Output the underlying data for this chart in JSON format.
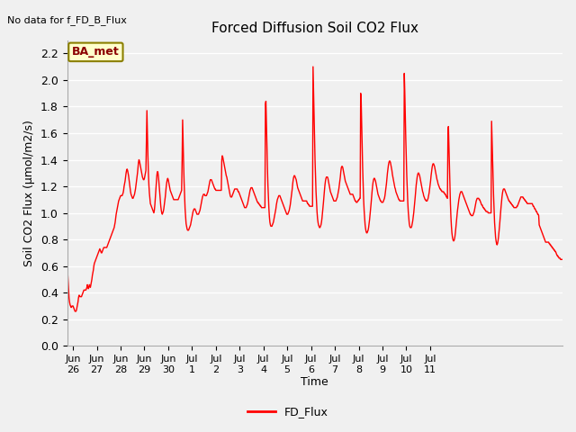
{
  "title": "Forced Diffusion Soil CO2 Flux",
  "ylabel": "Soil CO2 Flux (μmol/m2/s)",
  "xlabel": "Time",
  "no_data_text": "No data for f_FD_B_Flux",
  "legend_label": "FD_Flux",
  "line_color": "red",
  "line_width": 1.0,
  "bg_color": "#f0f0f0",
  "plot_bg_color": "#f0f0f0",
  "ylim": [
    0.0,
    2.3
  ],
  "yticks": [
    0.0,
    0.2,
    0.4,
    0.6,
    0.8,
    1.0,
    1.2,
    1.4,
    1.6,
    1.8,
    2.0,
    2.2
  ],
  "ba_met_box": {
    "text": "BA_met",
    "facecolor": "#ffffcc",
    "edgecolor": "#8B8000",
    "textcolor": "#8B0000"
  },
  "x_tick_labels": [
    "Jun\n26",
    "Jun\n27",
    "Jun\n28",
    "Jun\n29",
    "Jun\n30",
    "Jul\n1",
    "Jul\n2",
    "Jul\n3",
    "Jul\n4",
    "Jul\n5",
    "Jul\n6",
    "Jul\n7",
    "Jul\n8",
    "Jul\n9",
    "Jul\n10",
    "Jul\n11"
  ],
  "flux_values": [
    0.63,
    0.56,
    0.48,
    0.41,
    0.36,
    0.33,
    0.31,
    0.3,
    0.29,
    0.29,
    0.3,
    0.3,
    0.3,
    0.29,
    0.28,
    0.27,
    0.26,
    0.26,
    0.26,
    0.27,
    0.29,
    0.31,
    0.33,
    0.36,
    0.38,
    0.38,
    0.37,
    0.37,
    0.37,
    0.37,
    0.38,
    0.39,
    0.4,
    0.41,
    0.42,
    0.42,
    0.42,
    0.42,
    0.42,
    0.43,
    0.44,
    0.46,
    0.44,
    0.43,
    0.44,
    0.46,
    0.45,
    0.44,
    0.46,
    0.48,
    0.5,
    0.53,
    0.55,
    0.57,
    0.6,
    0.62,
    0.63,
    0.64,
    0.65,
    0.66,
    0.67,
    0.68,
    0.69,
    0.7,
    0.71,
    0.72,
    0.73,
    0.72,
    0.71,
    0.7,
    0.7,
    0.71,
    0.72,
    0.73,
    0.74,
    0.74,
    0.74,
    0.74,
    0.74,
    0.74,
    0.74,
    0.75,
    0.76,
    0.77,
    0.78,
    0.79,
    0.8,
    0.81,
    0.82,
    0.83,
    0.84,
    0.85,
    0.86,
    0.87,
    0.88,
    0.89,
    0.91,
    0.93,
    0.96,
    0.99,
    1.01,
    1.03,
    1.05,
    1.07,
    1.09,
    1.1,
    1.11,
    1.12,
    1.13,
    1.13,
    1.13,
    1.13,
    1.14,
    1.15,
    1.17,
    1.2,
    1.22,
    1.24,
    1.27,
    1.3,
    1.32,
    1.33,
    1.32,
    1.3,
    1.28,
    1.25,
    1.22,
    1.19,
    1.16,
    1.14,
    1.13,
    1.12,
    1.11,
    1.11,
    1.12,
    1.13,
    1.14,
    1.16,
    1.18,
    1.21,
    1.24,
    1.27,
    1.3,
    1.34,
    1.38,
    1.4,
    1.39,
    1.37,
    1.35,
    1.33,
    1.31,
    1.29,
    1.27,
    1.26,
    1.25,
    1.25,
    1.26,
    1.28,
    1.3,
    1.32,
    1.53,
    1.77,
    1.6,
    1.43,
    1.3,
    1.21,
    1.15,
    1.11,
    1.07,
    1.06,
    1.05,
    1.04,
    1.03,
    1.02,
    1.01,
    1.0,
    1.02,
    1.06,
    1.11,
    1.17,
    1.23,
    1.28,
    1.31,
    1.31,
    1.28,
    1.24,
    1.19,
    1.14,
    1.09,
    1.05,
    1.02,
    1.0,
    0.99,
    1.0,
    1.01,
    1.03,
    1.06,
    1.09,
    1.12,
    1.16,
    1.2,
    1.23,
    1.25,
    1.26,
    1.25,
    1.23,
    1.21,
    1.19,
    1.17,
    1.16,
    1.15,
    1.14,
    1.13,
    1.12,
    1.11,
    1.1,
    1.1,
    1.1,
    1.1,
    1.1,
    1.1,
    1.1,
    1.1,
    1.1,
    1.1,
    1.11,
    1.12,
    1.13,
    1.14,
    1.15,
    1.16,
    1.17,
    1.4,
    1.7,
    1.53,
    1.37,
    1.23,
    1.12,
    1.03,
    0.97,
    0.92,
    0.9,
    0.88,
    0.87,
    0.87,
    0.87,
    0.88,
    0.89,
    0.9,
    0.91,
    0.93,
    0.95,
    0.97,
    0.99,
    1.01,
    1.02,
    1.03,
    1.03,
    1.03,
    1.02,
    1.01,
    1.0,
    0.99,
    0.99,
    0.99,
    0.99,
    1.0,
    1.01,
    1.02,
    1.04,
    1.06,
    1.08,
    1.1,
    1.12,
    1.13,
    1.14,
    1.14,
    1.14,
    1.13,
    1.13,
    1.13,
    1.13,
    1.14,
    1.15,
    1.16,
    1.18,
    1.2,
    1.22,
    1.24,
    1.25,
    1.25,
    1.25,
    1.24,
    1.23,
    1.22,
    1.21,
    1.2,
    1.19,
    1.18,
    1.18,
    1.17,
    1.17,
    1.17,
    1.17,
    1.17,
    1.17,
    1.17,
    1.17,
    1.17,
    1.17,
    1.17,
    1.17,
    1.4,
    1.43,
    1.42,
    1.4,
    1.38,
    1.36,
    1.34,
    1.32,
    1.3,
    1.28,
    1.27,
    1.25,
    1.23,
    1.21,
    1.19,
    1.17,
    1.15,
    1.13,
    1.12,
    1.12,
    1.12,
    1.13,
    1.14,
    1.15,
    1.16,
    1.17,
    1.18,
    1.18,
    1.18,
    1.18,
    1.18,
    1.18,
    1.17,
    1.16,
    1.16,
    1.15,
    1.14,
    1.13,
    1.12,
    1.11,
    1.1,
    1.09,
    1.08,
    1.07,
    1.06,
    1.05,
    1.04,
    1.04,
    1.04,
    1.04,
    1.05,
    1.06,
    1.07,
    1.09,
    1.11,
    1.13,
    1.15,
    1.17,
    1.18,
    1.19,
    1.19,
    1.19,
    1.18,
    1.17,
    1.16,
    1.15,
    1.14,
    1.13,
    1.12,
    1.11,
    1.1,
    1.09,
    1.08,
    1.08,
    1.07,
    1.07,
    1.06,
    1.06,
    1.05,
    1.05,
    1.04,
    1.04,
    1.04,
    1.04,
    1.04,
    1.04,
    1.04,
    1.04,
    1.82,
    1.84,
    1.67,
    1.5,
    1.34,
    1.21,
    1.11,
    1.03,
    0.97,
    0.93,
    0.91,
    0.9,
    0.9,
    0.9,
    0.91,
    0.92,
    0.93,
    0.95,
    0.97,
    0.99,
    1.01,
    1.03,
    1.06,
    1.08,
    1.1,
    1.11,
    1.12,
    1.13,
    1.13,
    1.13,
    1.12,
    1.11,
    1.1,
    1.09,
    1.08,
    1.07,
    1.06,
    1.05,
    1.04,
    1.03,
    1.02,
    1.01,
    1.0,
    0.99,
    0.99,
    0.99,
    1.0,
    1.01,
    1.02,
    1.04,
    1.06,
    1.09,
    1.12,
    1.15,
    1.18,
    1.22,
    1.25,
    1.27,
    1.28,
    1.28,
    1.27,
    1.26,
    1.25,
    1.23,
    1.21,
    1.19,
    1.18,
    1.17,
    1.16,
    1.15,
    1.14,
    1.13,
    1.12,
    1.11,
    1.1,
    1.09,
    1.09,
    1.09,
    1.09,
    1.09,
    1.09,
    1.09,
    1.09,
    1.09,
    1.08,
    1.07,
    1.07,
    1.06,
    1.06,
    1.05,
    1.05,
    1.05,
    1.05,
    1.05,
    1.05,
    1.05,
    2.1,
    1.92,
    1.73,
    1.55,
    1.4,
    1.27,
    1.16,
    1.08,
    1.01,
    0.96,
    0.93,
    0.91,
    0.9,
    0.89,
    0.89,
    0.9,
    0.91,
    0.93,
    0.96,
    1.0,
    1.04,
    1.08,
    1.13,
    1.17,
    1.21,
    1.24,
    1.26,
    1.27,
    1.27,
    1.27,
    1.26,
    1.24,
    1.22,
    1.2,
    1.18,
    1.16,
    1.15,
    1.14,
    1.13,
    1.12,
    1.11,
    1.1,
    1.09,
    1.09,
    1.09,
    1.09,
    1.09,
    1.1,
    1.11,
    1.12,
    1.14,
    1.16,
    1.18,
    1.21,
    1.24,
    1.27,
    1.31,
    1.34,
    1.35,
    1.35,
    1.34,
    1.32,
    1.3,
    1.28,
    1.26,
    1.24,
    1.23,
    1.22,
    1.21,
    1.2,
    1.19,
    1.18,
    1.17,
    1.16,
    1.15,
    1.14,
    1.14,
    1.14,
    1.14,
    1.14,
    1.14,
    1.13,
    1.12,
    1.11,
    1.1,
    1.09,
    1.09,
    1.08,
    1.08,
    1.08,
    1.09,
    1.09,
    1.1,
    1.1,
    1.11,
    1.11,
    1.9,
    1.85,
    1.67,
    1.49,
    1.34,
    1.21,
    1.1,
    1.02,
    0.96,
    0.91,
    0.88,
    0.86,
    0.85,
    0.85,
    0.86,
    0.87,
    0.89,
    0.92,
    0.95,
    0.99,
    1.03,
    1.07,
    1.12,
    1.16,
    1.2,
    1.23,
    1.25,
    1.26,
    1.26,
    1.25,
    1.24,
    1.22,
    1.2,
    1.18,
    1.16,
    1.14,
    1.13,
    1.12,
    1.11,
    1.1,
    1.09,
    1.09,
    1.08,
    1.08,
    1.08,
    1.08,
    1.09,
    1.1,
    1.11,
    1.13,
    1.16,
    1.19,
    1.22,
    1.26,
    1.3,
    1.33,
    1.36,
    1.38,
    1.39,
    1.39,
    1.38,
    1.36,
    1.34,
    1.32,
    1.29,
    1.27,
    1.25,
    1.23,
    1.21,
    1.19,
    1.18,
    1.16,
    1.15,
    1.14,
    1.13,
    1.12,
    1.11,
    1.1,
    1.1,
    1.09,
    1.09,
    1.09,
    1.09,
    1.09,
    1.09,
    1.09,
    1.09,
    1.09,
    2.05,
    1.91,
    1.73,
    1.56,
    1.41,
    1.28,
    1.17,
    1.08,
    1.01,
    0.96,
    0.92,
    0.9,
    0.89,
    0.89,
    0.89,
    0.9,
    0.92,
    0.94,
    0.97,
    1.0,
    1.04,
    1.08,
    1.12,
    1.17,
    1.21,
    1.24,
    1.27,
    1.29,
    1.3,
    1.3,
    1.29,
    1.28,
    1.26,
    1.24,
    1.22,
    1.2,
    1.18,
    1.16,
    1.15,
    1.13,
    1.12,
    1.11,
    1.1,
    1.1,
    1.09,
    1.09,
    1.09,
    1.1,
    1.11,
    1.13,
    1.15,
    1.18,
    1.21,
    1.24,
    1.28,
    1.31,
    1.34,
    1.36,
    1.37,
    1.37,
    1.36,
    1.35,
    1.33,
    1.31,
    1.29,
    1.27,
    1.25,
    1.24,
    1.22,
    1.21,
    1.2,
    1.19,
    1.18,
    1.18,
    1.17,
    1.17,
    1.16,
    1.16,
    1.16,
    1.16,
    1.15,
    1.15,
    1.14,
    1.14,
    1.13,
    1.12,
    1.12,
    1.11,
    1.6,
    1.65,
    1.5,
    1.34,
    1.19,
    1.07,
    0.97,
    0.9,
    0.85,
    0.82,
    0.8,
    0.79,
    0.79,
    0.8,
    0.82,
    0.85,
    0.89,
    0.93,
    0.97,
    1.01,
    1.04,
    1.07,
    1.1,
    1.12,
    1.14,
    1.15,
    1.16,
    1.16,
    1.16,
    1.15,
    1.14,
    1.13,
    1.12,
    1.11,
    1.1,
    1.09,
    1.08,
    1.07,
    1.06,
    1.05,
    1.04,
    1.03,
    1.02,
    1.01,
    1.0,
    0.99,
    0.99,
    0.98,
    0.98,
    0.98,
    0.98,
    0.99,
    1.0,
    1.01,
    1.03,
    1.05,
    1.07,
    1.09,
    1.1,
    1.11,
    1.11,
    1.11,
    1.11,
    1.1,
    1.1,
    1.09,
    1.08,
    1.07,
    1.06,
    1.06,
    1.05,
    1.04,
    1.04,
    1.03,
    1.03,
    1.02,
    1.02,
    1.01,
    1.01,
    1.01,
    1.01,
    1.0,
    1.0,
    1.0,
    1.0,
    1.0,
    1.0,
    1.0,
    1.69,
    1.55,
    1.4,
    1.26,
    1.13,
    1.02,
    0.93,
    0.87,
    0.82,
    0.79,
    0.77,
    0.76,
    0.77,
    0.79,
    0.82,
    0.86,
    0.9,
    0.95,
    0.99,
    1.04,
    1.08,
    1.12,
    1.15,
    1.17,
    1.18,
    1.18,
    1.18,
    1.17,
    1.16,
    1.15,
    1.14,
    1.13,
    1.12,
    1.11,
    1.1,
    1.09,
    1.09,
    1.08,
    1.08,
    1.07,
    1.07,
    1.06,
    1.06,
    1.05,
    1.05,
    1.04,
    1.04,
    1.04,
    1.04,
    1.04,
    1.04,
    1.05,
    1.05,
    1.06,
    1.07,
    1.08,
    1.09,
    1.1,
    1.11,
    1.12,
    1.12,
    1.12,
    1.12,
    1.12,
    1.11,
    1.11,
    1.1,
    1.1,
    1.09,
    1.09,
    1.08,
    1.08,
    1.07,
    1.07,
    1.07,
    1.07,
    1.07,
    1.07,
    1.07,
    1.07,
    1.07,
    1.07,
    1.07,
    1.06,
    1.05,
    1.05,
    1.04,
    1.03,
    1.03,
    1.02,
    1.01,
    1.01,
    1.0,
    0.99,
    0.99,
    0.98,
    0.91,
    0.9,
    0.89,
    0.88,
    0.87,
    0.86,
    0.85,
    0.84,
    0.83,
    0.82,
    0.81,
    0.8,
    0.79,
    0.78,
    0.78,
    0.78,
    0.78,
    0.78,
    0.78,
    0.78,
    0.77,
    0.77,
    0.76,
    0.76,
    0.75,
    0.75,
    0.74,
    0.74,
    0.73,
    0.73,
    0.72,
    0.72,
    0.71,
    0.71,
    0.7,
    0.69,
    0.68,
    0.68,
    0.67,
    0.67,
    0.66,
    0.66,
    0.66,
    0.65,
    0.65,
    0.65,
    0.65,
    0.65
  ]
}
